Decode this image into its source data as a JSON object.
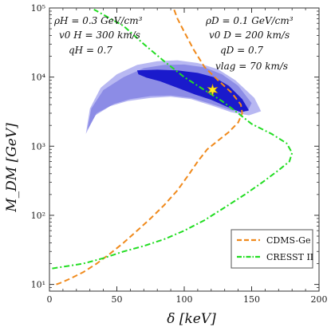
{
  "chart_data": {
    "type": "line",
    "x_axis": {
      "label": "δ   [keV]",
      "lim": [
        0,
        200
      ],
      "ticks": [
        0,
        50,
        100,
        150,
        200
      ]
    },
    "y_axis": {
      "label": "M_DM   [GeV]",
      "scale": "log",
      "lim": [
        8,
        100000
      ],
      "ticks": [
        10,
        100,
        1000,
        10000,
        100000
      ],
      "tick_labels": [
        "10¹",
        "10²",
        "10³",
        "10⁴",
        "10⁵"
      ]
    },
    "annotations_left": [
      "ρH = 0.3 GeV/cm³",
      "v0 H = 300 km/s",
      "qH = 0.7"
    ],
    "annotations_right": [
      "ρD = 0.1 GeV/cm³",
      "v0 D = 200 km/s",
      "qD = 0.7",
      "vlag = 70 km/s"
    ],
    "legend": {
      "placement": "bottom-right",
      "entries": [
        {
          "name": "CDMS-Ge",
          "color": "#f08a1c",
          "style": "dashed"
        },
        {
          "name": "CRESST II",
          "color": "#22dd22",
          "style": "dash-dot"
        }
      ]
    },
    "series": [
      {
        "name": "CDMS-Ge",
        "color": "#f08a1c",
        "style": "dashed",
        "points": [
          [
            5,
            10
          ],
          [
            8,
            10.5
          ],
          [
            15,
            12
          ],
          [
            25,
            15
          ],
          [
            35,
            20
          ],
          [
            45,
            28
          ],
          [
            55,
            40
          ],
          [
            65,
            60
          ],
          [
            75,
            90
          ],
          [
            85,
            140
          ],
          [
            95,
            230
          ],
          [
            103,
            380
          ],
          [
            110,
            600
          ],
          [
            117,
            900
          ],
          [
            125,
            1200
          ],
          [
            133,
            1600
          ],
          [
            140,
            2200
          ],
          [
            143,
            3000
          ],
          [
            142,
            4000
          ],
          [
            135,
            6000
          ],
          [
            125,
            9000
          ],
          [
            115,
            14000
          ],
          [
            107,
            25000
          ],
          [
            100,
            45000
          ],
          [
            95,
            70000
          ],
          [
            92,
            100000
          ]
        ]
      },
      {
        "name": "CRESST II",
        "color": "#22dd22",
        "style": "dash-dot",
        "points": [
          [
            2,
            17
          ],
          [
            10,
            18
          ],
          [
            25,
            20
          ],
          [
            40,
            24
          ],
          [
            55,
            30
          ],
          [
            70,
            36
          ],
          [
            85,
            45
          ],
          [
            100,
            60
          ],
          [
            115,
            85
          ],
          [
            130,
            130
          ],
          [
            145,
            200
          ],
          [
            158,
            300
          ],
          [
            170,
            450
          ],
          [
            178,
            600
          ],
          [
            180,
            800
          ],
          [
            176,
            1100
          ],
          [
            165,
            1500
          ],
          [
            150,
            2100
          ],
          [
            140,
            3000
          ],
          [
            128,
            4500
          ],
          [
            115,
            6500
          ],
          [
            100,
            10000
          ],
          [
            85,
            17000
          ],
          [
            70,
            30000
          ],
          [
            55,
            55000
          ],
          [
            40,
            80000
          ],
          [
            33,
            95000
          ]
        ]
      }
    ],
    "regions": [
      {
        "level": "outer",
        "color": "#b8b8f2",
        "points": [
          [
            27,
            1500
          ],
          [
            30,
            3500
          ],
          [
            38,
            7000
          ],
          [
            50,
            11000
          ],
          [
            65,
            15000
          ],
          [
            80,
            17000
          ],
          [
            95,
            17500
          ],
          [
            110,
            16000
          ],
          [
            125,
            13000
          ],
          [
            138,
            9000
          ],
          [
            152,
            5000
          ],
          [
            157,
            3200
          ],
          [
            148,
            2800
          ],
          [
            135,
            3100
          ],
          [
            120,
            3900
          ],
          [
            105,
            4800
          ],
          [
            90,
            5200
          ],
          [
            75,
            5000
          ],
          [
            58,
            4500
          ],
          [
            45,
            3800
          ],
          [
            34,
            2800
          ]
        ]
      },
      {
        "level": "middle",
        "color": "#8c8ce6",
        "points": [
          [
            28,
            1700
          ],
          [
            31,
            3500
          ],
          [
            40,
            6500
          ],
          [
            55,
            10000
          ],
          [
            70,
            13500
          ],
          [
            85,
            15000
          ],
          [
            100,
            15200
          ],
          [
            115,
            13800
          ],
          [
            128,
            11000
          ],
          [
            140,
            7500
          ],
          [
            150,
            4200
          ],
          [
            147,
            3200
          ],
          [
            135,
            3300
          ],
          [
            120,
            4100
          ],
          [
            105,
            5000
          ],
          [
            90,
            5400
          ],
          [
            75,
            5300
          ],
          [
            60,
            4800
          ],
          [
            48,
            4100
          ],
          [
            35,
            3000
          ]
        ]
      },
      {
        "level": "inner",
        "color": "#1a1acc",
        "points": [
          [
            65,
            12500
          ],
          [
            80,
            12800
          ],
          [
            95,
            12500
          ],
          [
            110,
            11500
          ],
          [
            122,
            10000
          ],
          [
            133,
            7500
          ],
          [
            143,
            4800
          ],
          [
            148,
            3300
          ],
          [
            142,
            3100
          ],
          [
            132,
            3700
          ],
          [
            120,
            4700
          ],
          [
            108,
            5600
          ],
          [
            95,
            7000
          ],
          [
            82,
            8700
          ],
          [
            72,
            9800
          ],
          [
            66,
            11000
          ]
        ]
      }
    ],
    "best_fit_point": {
      "x": 121,
      "y": 6500
    }
  }
}
